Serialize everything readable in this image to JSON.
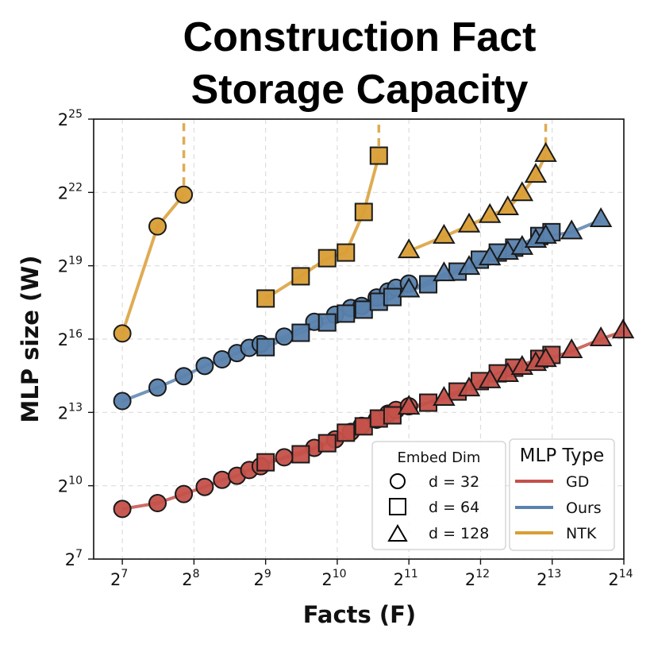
{
  "chart_data": {
    "type": "line",
    "title_lines": [
      "Construction Fact",
      "Storage Capacity"
    ],
    "xlabel": "Facts (F)",
    "ylabel": "MLP size (W)",
    "x_scale": "log2",
    "y_scale": "log2",
    "tick_base": "2",
    "x_tick_exponents": [
      "7",
      "8",
      "9",
      "10",
      "11",
      "12",
      "13",
      "14"
    ],
    "y_tick_exponents": [
      "7",
      "10",
      "13",
      "16",
      "19",
      "22",
      "25"
    ],
    "xlim": [
      97,
      16384
    ],
    "ylim": [
      128,
      33554432
    ],
    "grid": true,
    "colors": {
      "GD": "#c4514a",
      "Ours": "#5a82ad",
      "NTK": "#d99e35"
    },
    "legend": {
      "placement": "lower-right",
      "embed_title": "Embed Dim",
      "embed_entries": [
        {
          "marker": "circle",
          "label": "d = 32"
        },
        {
          "marker": "square",
          "label": "d = 64"
        },
        {
          "marker": "triangle",
          "label": "d = 128"
        }
      ],
      "type_title": "MLP Type",
      "type_entries": [
        {
          "name": "GD",
          "label": "GD"
        },
        {
          "name": "Ours",
          "label": "Ours"
        },
        {
          "name": "NTK",
          "label": "NTK"
        }
      ]
    },
    "series": [
      {
        "type": "GD",
        "dim": 32,
        "marker": "circle",
        "x": [
          128,
          180,
          232,
          284,
          336,
          388,
          437,
          488,
          613,
          820,
          1003,
          1168,
          1296,
          1500,
          1675,
          1808,
          2048
        ],
        "y": [
          530,
          626,
          809,
          989,
          1210,
          1360,
          1600,
          1780,
          2290,
          3000,
          3820,
          4710,
          5600,
          6660,
          7910,
          8780,
          9740
        ]
      },
      {
        "type": "GD",
        "dim": 64,
        "marker": "square",
        "x": [
          512,
          719,
          929,
          1113,
          1323,
          1531,
          1746,
          2469,
          3281,
          4068,
          4838,
          5673,
          7230,
          8136
        ],
        "y": [
          1990,
          2500,
          3420,
          4610,
          5520,
          6890,
          7540,
          10800,
          14800,
          19900,
          24800,
          29100,
          37400,
          41800
        ]
      },
      {
        "type": "GD",
        "dim": 128,
        "marker": "triangle",
        "x": [
          2048,
          2876,
          3666,
          4482,
          5330,
          6124,
          6985,
          7695,
          9882,
          13124,
          16270
        ],
        "y": [
          9410,
          12100,
          15800,
          19900,
          23800,
          29100,
          32500,
          36400,
          46700,
          65536,
          81800
        ]
      },
      {
        "type": "Ours",
        "dim": 32,
        "marker": "circle",
        "x": [
          128,
          180,
          232,
          284,
          336,
          388,
          437,
          488,
          613,
          820,
          1003,
          1168,
          1296,
          1500,
          1675,
          1808,
          2048
        ],
        "y": [
          11300,
          16600,
          22900,
          30600,
          36900,
          44100,
          51100,
          57000,
          70300,
          107000,
          131072,
          158000,
          168000,
          213000,
          253000,
          281000,
          316000
        ]
      },
      {
        "type": "Ours",
        "dim": 64,
        "marker": "square",
        "x": [
          512,
          719,
          929,
          1113,
          1323,
          1531,
          1746,
          2469,
          3281,
          4068,
          4838,
          5673,
          7230,
          8136
        ],
        "y": [
          52100,
          78400,
          105000,
          135000,
          151000,
          189000,
          216000,
          310000,
          444000,
          623000,
          762000,
          876000,
          1220000,
          1360000
        ]
      },
      {
        "type": "Ours",
        "dim": 128,
        "marker": "triangle",
        "x": [
          2048,
          2876,
          3666,
          4482,
          5330,
          6124,
          6985,
          7695,
          9882,
          13124
        ],
        "y": [
          262144,
          414000,
          496000,
          650000,
          762000,
          876000,
          1070000,
          1200000,
          1360000,
          1920000
        ]
      },
      {
        "type": "NTK",
        "dim": 32,
        "marker": "circle",
        "diverges_after_last": true,
        "x": [
          128,
          180,
          232
        ],
        "y": [
          76900,
          1600000,
          3940000
        ]
      },
      {
        "type": "NTK",
        "dim": 64,
        "marker": "square",
        "diverges_after_last": true,
        "x": [
          512,
          719,
          929,
          1113,
          1323,
          1531
        ],
        "y": [
          207000,
          389000,
          650000,
          762000,
          2410000,
          11900000
        ]
      },
      {
        "type": "NTK",
        "dim": 128,
        "marker": "triangle",
        "diverges_after_last": true,
        "x": [
          2048,
          2876,
          3666,
          4482,
          5330,
          6124,
          6985,
          7695
        ],
        "y": [
          795000,
          1200000,
          1650000,
          2160000,
          2690000,
          4020000,
          6770000,
          12200000
        ]
      }
    ]
  }
}
